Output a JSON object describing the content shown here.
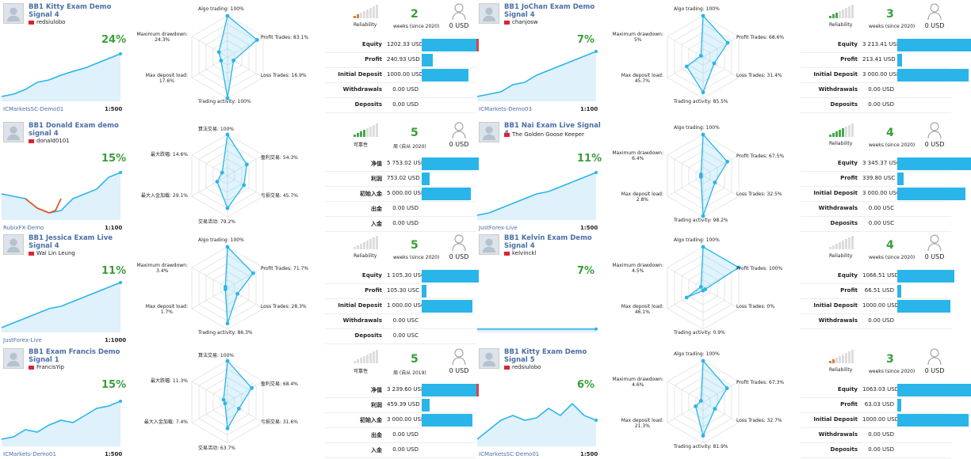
{
  "cards": [
    {
      "title": "BB1 Kitty Exam Demo Signal 4",
      "author": "redsiulobo",
      "growth": "24%",
      "broker": "ICMarketsSC-Demo01",
      "leverage": "1:500",
      "weeks": "2",
      "weeks_text": "weeks (since 2020)",
      "reliability": "Reliability",
      "subs": "0 USD",
      "rel_level": 2,
      "radar": {
        "labels": [
          "Algo trading: 100%",
          "Profit Trades: 83.1%",
          "Loss Trades: 16.9%",
          "Trading activity: 100%",
          "Max deposit load:\n17.6%",
          "Maximum drawdown:\n24.3%"
        ],
        "values": [
          1,
          0.83,
          0.17,
          1,
          0.18,
          0.24
        ]
      },
      "stats": [
        {
          "k": "Equity",
          "v": "1202.33 USD",
          "f": 0.45,
          "red": true
        },
        {
          "k": "Profit",
          "v": "240.93 USD",
          "f": 0.09
        },
        {
          "k": "Initial Deposit",
          "v": "1000.00 USD",
          "f": 0.37
        },
        {
          "k": "Withdrawals",
          "v": "0.00 USD",
          "f": 0
        },
        {
          "k": "Deposits",
          "v": "0.00 USD",
          "f": 0
        }
      ],
      "line": [
        0.05,
        0.1,
        0.2,
        0.35,
        0.4,
        0.5,
        0.58,
        0.65,
        0.75,
        0.85,
        0.95
      ]
    },
    {
      "title": "BB1 JoChan Exam Demo Signal 4",
      "author": "chanjosw",
      "growth": "7%",
      "broker": "ICMarkets-Demo03",
      "leverage": "1:100",
      "weeks": "3",
      "weeks_text": "weeks (since 2020)",
      "reliability": "Reliability",
      "subs": "0 USD",
      "rel_level": 3,
      "radar": {
        "labels": [
          "Algo trading: 100%",
          "Profit Trades: 68.6%",
          "Loss Trades: 31.4%",
          "Trading activity: 85.5%",
          "Max deposit load:\n45.7%",
          "Maximum drawdown:\n5%"
        ],
        "values": [
          1,
          0.69,
          0.31,
          0.86,
          0.46,
          0.05
        ]
      },
      "stats": [
        {
          "k": "Equity",
          "v": "3 213.41 USD",
          "f": 0.6
        },
        {
          "k": "Profit",
          "v": "213.41 USD",
          "f": 0.04
        },
        {
          "k": "Initial Deposit",
          "v": "3 000.00 USD",
          "f": 0.56
        },
        {
          "k": "Withdrawals",
          "v": "0.00 USD",
          "f": 0
        },
        {
          "k": "Deposits",
          "v": "0.00 USD",
          "f": 0
        }
      ],
      "line": [
        0.05,
        0.1,
        0.15,
        0.3,
        0.35,
        0.5,
        0.6,
        0.7,
        0.8,
        0.9,
        1
      ]
    },
    {
      "title": "BB1 Donald Exam demo signal 4",
      "author": "donald0101",
      "growth": "15%",
      "broker": "RubixFX-Demo",
      "leverage": "1:100",
      "weeks": "5",
      "weeks_text": "周 (自从 2020)",
      "reliability": "可靠性",
      "subs": "0 USD",
      "rel_level": 4,
      "radar": {
        "labels": [
          "算法交易: 100%",
          "盈利交易: 54.3%",
          "亏损交易: 45.7%",
          "交易活动: 79.2%",
          "最大入金加载: 29.1%",
          "最大跌幅: 14.6%"
        ],
        "values": [
          1,
          0.54,
          0.46,
          0.79,
          0.29,
          0.15
        ]
      },
      "stats": [
        {
          "k": "净值",
          "v": "5 753.02 USD",
          "f": 0.45
        },
        {
          "k": "利润",
          "v": "753.02 USD",
          "f": 0.06
        },
        {
          "k": "初始入金",
          "v": "5 000.00 USD",
          "f": 0.39
        },
        {
          "k": "出金",
          "v": "0.00 USD",
          "f": 0
        },
        {
          "k": "入金",
          "v": "0.00 USD",
          "f": 0
        }
      ],
      "line": [
        0.5,
        0.45,
        0.4,
        0.2,
        0.1,
        0.15,
        0.4,
        0.5,
        0.6,
        0.85,
        0.95
      ]
    },
    {
      "title": "BB1 Nai Exam Live Signal 4",
      "author": "The Golden Goose Keeper",
      "growth": "11%",
      "broker": "JustForex-Live",
      "leverage": "1:500",
      "weeks": "4",
      "weeks_text": "weeks (since 2020)",
      "reliability": "Reliability",
      "subs": "0 USD",
      "rel_level": 5,
      "radar": {
        "labels": [
          "Algo trading: 100%",
          "Profit Trades: 67.5%",
          "Loss Trades: 32.5%",
          "Trading activity: 98.2%",
          "Max deposit load:\n2.8%",
          "Maximum drawdown:\n6.4%"
        ],
        "values": [
          1,
          0.68,
          0.33,
          0.98,
          0.03,
          0.06
        ]
      },
      "stats": [
        {
          "k": "Equity",
          "v": "3 345.37 USC",
          "f": 0.6
        },
        {
          "k": "Profit",
          "v": "339.80 USC",
          "f": 0.05
        },
        {
          "k": "Initial Deposit",
          "v": "3 000.00 USC",
          "f": 0.54
        },
        {
          "k": "Withdrawals",
          "v": "0.00 USC",
          "f": 0
        },
        {
          "k": "Deposits",
          "v": "0.00 USC",
          "f": 0
        }
      ],
      "line": [
        0.05,
        0.1,
        0.2,
        0.3,
        0.4,
        0.5,
        0.55,
        0.65,
        0.75,
        0.85,
        0.95
      ]
    },
    {
      "title": "BB1 Jessica Exam Live Signal 4",
      "author": "Wai Lin Leung",
      "growth": "11%",
      "broker": "JustForex-Live",
      "leverage": "1:1000",
      "weeks": "5",
      "weeks_text": "weeks (since 2020)",
      "reliability": "Reliability",
      "subs": "0 USD",
      "rel_level": 0,
      "radar": {
        "labels": [
          "Algo trading: 100%",
          "Profit Trades: 71.7%",
          "Loss Trades: 28.3%",
          "Trading activity: 86.3%",
          "Max deposit load:\n1.7%",
          "Maximum drawdown:\n3.4%"
        ],
        "values": [
          1,
          0.72,
          0.28,
          0.86,
          0.02,
          0.03
        ]
      },
      "stats": [
        {
          "k": "Equity",
          "v": "1 105.30 USC",
          "f": 0.45
        },
        {
          "k": "Profit",
          "v": "105.30 USC",
          "f": 0.04
        },
        {
          "k": "Initial Deposit",
          "v": "1 000.00 USC",
          "f": 0.4
        },
        {
          "k": "Withdrawals",
          "v": "0.00 USC",
          "f": 0
        },
        {
          "k": "Deposits",
          "v": "0.00 USC",
          "f": 0
        }
      ],
      "line": [
        0.05,
        0.15,
        0.25,
        0.35,
        0.45,
        0.5,
        0.6,
        0.7,
        0.8,
        0.9,
        1
      ]
    },
    {
      "title": "BB1 Kelvin Exam Demo Signal 4",
      "author": "kelvinckl",
      "growth": "7%",
      "broker": "",
      "leverage": "",
      "weeks": "4",
      "weeks_text": "weeks (since 2020)",
      "reliability": "Reliability",
      "subs": "0 USD",
      "rel_level": 0,
      "radar": {
        "labels": [
          "Algo trading: 100%",
          "Profit Trades: 100%",
          "Loss Trades: 0%",
          "Trading activity: 0.9%",
          "Max deposit load:\n46.1%",
          "Maximum drawdown:\n4.5%"
        ],
        "values": [
          1,
          1,
          0,
          0.01,
          0.46,
          0.05
        ]
      },
      "stats": [
        {
          "k": "Equity",
          "v": "1066.51 USD",
          "f": 0.45
        },
        {
          "k": "Profit",
          "v": "66.51 USD",
          "f": 0.03
        },
        {
          "k": "Initial Deposit",
          "v": "1000.00 USD",
          "f": 0.42
        },
        {
          "k": "Withdrawals",
          "v": "0.00 USD",
          "f": 0
        }
      ],
      "line": [
        0.02,
        0.02,
        0.02,
        0.02,
        0.02,
        0.02,
        0.02,
        0.02,
        0.02,
        0.02,
        0.02
      ]
    },
    {
      "title": "BB1 Exam Francis Demo Signal 1",
      "author": "FrancisYip",
      "growth": "15%",
      "broker": "ICMarkets-Demo01",
      "leverage": "1:500",
      "weeks": "5",
      "weeks_text": "周 (自从 2019)",
      "reliability": "可靠性",
      "subs": "0 USD",
      "rel_level": 0,
      "radar": {
        "labels": [
          "算法交易: 100%",
          "盈利交易: 68.4%",
          "亏损交易: 31.6%",
          "交易活动: 63.7%",
          "最大入金加载: 7.4%",
          "最大跌幅: 11.3%"
        ],
        "values": [
          1,
          0.68,
          0.32,
          0.64,
          0.07,
          0.11
        ]
      },
      "stats": [
        {
          "k": "净值",
          "v": "3 239.60 USD",
          "f": 0.45,
          "red": true
        },
        {
          "k": "利润",
          "v": "459.39 USD",
          "f": 0.06
        },
        {
          "k": "初始入金",
          "v": "3 000.00 USD",
          "f": 0.4
        },
        {
          "k": "出金",
          "v": "0.00 USD",
          "f": 0
        },
        {
          "k": "入金",
          "v": "0.00 USD",
          "f": 0
        }
      ],
      "line": [
        0.1,
        0.15,
        0.3,
        0.25,
        0.4,
        0.5,
        0.45,
        0.6,
        0.75,
        0.8,
        0.9
      ]
    },
    {
      "title": "BB1 Kitty Exam Demo Signal 5",
      "author": "redsiulobo",
      "growth": "6%",
      "broker": "ICMarketsSC-Demo01",
      "leverage": "1:500",
      "weeks": "3",
      "weeks_text": "weeks (since 2020)",
      "reliability": "Reliability",
      "subs": "0 USD",
      "rel_level": 1,
      "radar": {
        "labels": [
          "Algo trading: 100%",
          "Profit Trades: 67.3%",
          "Loss Trades: 32.7%",
          "Trading activity: 81.9%",
          "Max deposit load:\n21.3%",
          "Maximum drawdown:\n4.6%"
        ],
        "values": [
          1,
          0.67,
          0.33,
          0.82,
          0.21,
          0.05
        ]
      },
      "stats": [
        {
          "k": "Equity",
          "v": "1063.03 USD",
          "f": 0.6
        },
        {
          "k": "Profit",
          "v": "63.03 USD",
          "f": 0.03
        },
        {
          "k": "Initial Deposit",
          "v": "1000.00 USD",
          "f": 0.56
        },
        {
          "k": "Withdrawals",
          "v": "0.00 USD",
          "f": 0
        },
        {
          "k": "Deposits",
          "v": "0.00 USD",
          "f": 0
        }
      ],
      "line": [
        0.1,
        0.3,
        0.5,
        0.6,
        0.5,
        0.55,
        0.75,
        0.6,
        0.85,
        0.6,
        0.5
      ]
    }
  ],
  "colors": {
    "accent": "#2ab5ea",
    "growth": "#3a9d3a",
    "drawdown": "#e05a2a",
    "link": "#4a6fa5"
  }
}
